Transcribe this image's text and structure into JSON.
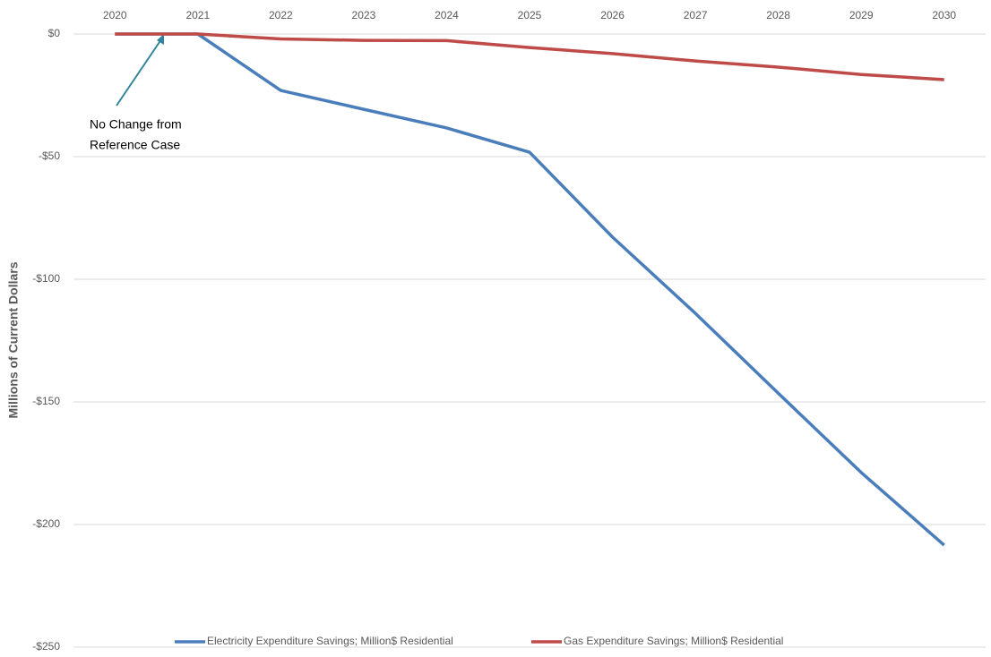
{
  "chart_data": {
    "type": "line",
    "y_label": "Millions of Current Dollars",
    "x": [
      2020,
      2021,
      2022,
      2023,
      2024,
      2025,
      2026,
      2027,
      2028,
      2029,
      2030
    ],
    "xlim": [
      2019.5,
      2030.5
    ],
    "xticks": [
      2020,
      2021,
      2022,
      2023,
      2024,
      2025,
      2026,
      2027,
      2028,
      2029,
      2030
    ],
    "ylim": [
      -250,
      0
    ],
    "yticks": [
      {
        "value": 0,
        "label": "$0"
      },
      {
        "value": -50,
        "label": "-$50"
      },
      {
        "value": -100,
        "label": "-$100"
      },
      {
        "value": -150,
        "label": "-$150"
      },
      {
        "value": -200,
        "label": "-$200"
      },
      {
        "value": -250,
        "label": "-$250"
      }
    ],
    "grid": true,
    "legend": "bottom",
    "annotation": [
      "No Change from",
      "Reference Case"
    ],
    "series": [
      {
        "name": "Electricity Expenditure Savings; Million$ Residential",
        "color": "#4a7ebb",
        "values": [
          0,
          0,
          -23,
          -30.7,
          -38.3,
          -48.2,
          -82.8,
          -113.9,
          -146.5,
          -178.8,
          -208.4
        ]
      },
      {
        "name": "Gas Expenditure Savings; Million$ Residential",
        "color": "#be4b48",
        "values": [
          0,
          0,
          -2,
          -2.6,
          -2.7,
          -5.5,
          -8,
          -11,
          -13.5,
          -16.5,
          -18.6
        ]
      }
    ]
  }
}
